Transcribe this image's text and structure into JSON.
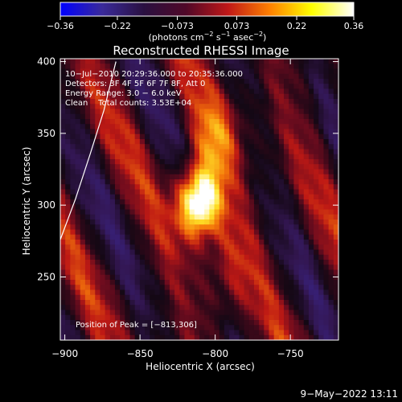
{
  "chart_data": {
    "type": "heatmap",
    "title": "Reconstructed RHESSI Image",
    "xlabel": "Heliocentric X (arcsec)",
    "ylabel": "Heliocentric Y (arcsec)",
    "xlim": [
      -903,
      -718
    ],
    "ylim": [
      206,
      402
    ],
    "x_ticks": [
      -900,
      -850,
      -800,
      -750
    ],
    "x_tick_labels": [
      "−900",
      "−850",
      "−800",
      "−750"
    ],
    "y_ticks": [
      250,
      300,
      350,
      400
    ],
    "y_tick_labels": [
      "250",
      "300",
      "350",
      "400"
    ],
    "colorbar": {
      "range": [
        -0.36,
        0.36
      ],
      "ticks": [
        -0.36,
        -0.22,
        -0.073,
        0.073,
        0.22,
        0.36
      ],
      "tick_labels": [
        "−0.36",
        "−0.22",
        "−0.073",
        "0.073",
        "0.22",
        "0.36"
      ],
      "colors": [
        "#0000ff",
        "#3a2a9a",
        "#2a1040",
        "#500828",
        "#c01818",
        "#ff8000",
        "#ffff00",
        "#ffffff"
      ],
      "label_prefix": "(photons cm",
      "label_exp1": "−2",
      "label_mid": " s",
      "label_exp2": "−1",
      "label_mid2": " asec",
      "label_exp3": "−2",
      "label_suffix": ")"
    },
    "peak": {
      "x": -813,
      "y": 306
    },
    "limb_curve": [
      [
        -903,
        276
      ],
      [
        -893,
        304
      ],
      [
        -883,
        336
      ],
      [
        -874,
        366
      ],
      [
        -866,
        400
      ]
    ],
    "annotations": [
      "10−Jul−2010 20:29:36.000 to 20:35:36.000",
      "Detectors: 3F 4F 5F 6F 7F 8F, Att 0",
      "Energy Range: 3.0 − 6.0 keV",
      "Clean    Total counts: 3.53E+04"
    ],
    "peak_label": "Position of Peak = [−813,306]"
  },
  "footer": {
    "timestamp": "9−May−2022 13:11"
  }
}
